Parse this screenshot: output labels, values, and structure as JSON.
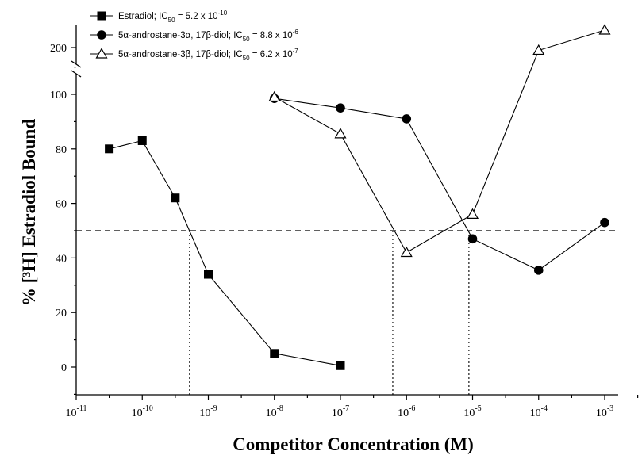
{
  "chart_data": {
    "type": "scatter",
    "xlabel": "Competitor Concentration (M)",
    "ylabel": "% [³H] Estradiol Bound",
    "x_scale": "log",
    "xlim": [
      1e-11,
      0.001
    ],
    "ylim": [
      -10,
      110
    ],
    "y_break": {
      "lower_top": 110,
      "upper_tick": 200
    },
    "x_ticks": [
      1e-11,
      1e-10,
      1e-09,
      1e-08,
      1e-07,
      1e-06,
      1e-05,
      0.0001,
      0.001
    ],
    "x_tick_exponents": [
      "-11",
      "-10",
      "-9",
      "-8",
      "-7",
      "-6",
      "-5",
      "-4",
      "-3"
    ],
    "y_ticks": [
      0,
      20,
      40,
      60,
      80,
      100
    ],
    "y_tick_labels": [
      "0",
      "20",
      "40",
      "60",
      "80",
      "100"
    ],
    "y_break_tick_label": "200",
    "legend_position": "top-left",
    "series": [
      {
        "legend_label": "Estradiol; IC50 = 5.2 x 10-10",
        "legend_parts": {
          "prefix": "Estradiol; IC",
          "sub": "50",
          "mid": " = 5.2 x 10",
          "sup": "-10"
        },
        "marker": "filled-square",
        "x": [
          3.16e-11,
          1e-10,
          3.16e-10,
          1e-09,
          1e-08,
          1e-07
        ],
        "y": [
          80,
          83,
          62,
          34,
          5,
          0.5
        ]
      },
      {
        "legend_label": "5α-androstane-3α, 17β-diol; IC50 = 8.8 x 10-6",
        "legend_parts": {
          "prefix": "5α-androstane-3α, 17β-diol; IC",
          "sub": "50",
          "mid": " = 8.8 x 10",
          "sup": "-6"
        },
        "marker": "filled-circle",
        "x": [
          1e-08,
          1e-07,
          1e-06,
          1e-05,
          0.0001,
          0.001
        ],
        "y": [
          98.5,
          95,
          91,
          47,
          35.5,
          53
        ]
      },
      {
        "legend_label": "5α-androstane-3β, 17β-diol; IC50 = 6.2 x 10-7",
        "legend_parts": {
          "prefix": "5α-androstane-3β, 17β-diol; IC",
          "sub": "50",
          "mid": " = 6.2 x 10",
          "sup": "-7"
        },
        "marker": "open-triangle",
        "x": [
          1e-08,
          1e-07,
          1e-06,
          1e-05,
          0.0001,
          0.001
        ],
        "y": [
          99,
          85.5,
          42,
          56,
          191,
          256
        ],
        "above_break": [
          false,
          false,
          false,
          false,
          true,
          true
        ]
      }
    ],
    "reference_line_y": 50,
    "ic50_markers_x": [
      5.2e-10,
      6.2e-07,
      8.8e-06
    ]
  }
}
